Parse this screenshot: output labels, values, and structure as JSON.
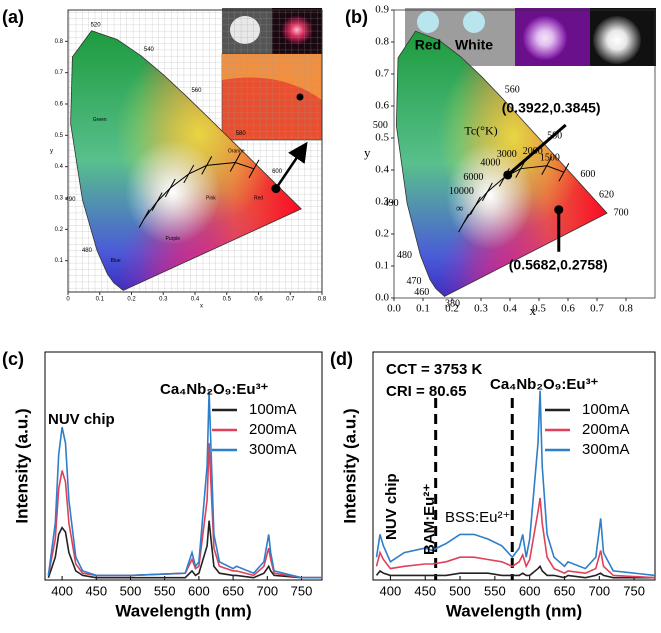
{
  "chart_data": [
    {
      "type": "scatter",
      "panel_label": "(a)",
      "xlim": [
        0,
        0.8
      ],
      "ylim": [
        0,
        0.9
      ],
      "xticks": [
        0,
        0.1,
        0.2,
        0.3,
        0.4,
        0.5,
        0.6,
        0.7,
        0.8
      ],
      "yticks": [
        0.1,
        0.2,
        0.3,
        0.4,
        0.5,
        0.6,
        0.7,
        0.8
      ],
      "xlabel": "x",
      "ylabel": "y",
      "grid": true,
      "color": "#000000",
      "x": [
        0.655
      ],
      "values": [
        0.33
      ],
      "locus_labels": [
        "480",
        "490",
        "520",
        "540",
        "560",
        "580",
        "600"
      ],
      "region_labels": [
        "Green",
        "Blue",
        "Purple",
        "Pink",
        "Red",
        "Orange"
      ]
    },
    {
      "type": "scatter",
      "panel_label": "(b)",
      "xlim": [
        0,
        0.9
      ],
      "ylim": [
        0,
        0.9
      ],
      "xticks": [
        {
          "value": 0,
          "label": "0.0"
        },
        0.1,
        0.2,
        0.3,
        0.4,
        0.5,
        0.6,
        0.7,
        0.8
      ],
      "yticks": [
        {
          "value": 0,
          "label": "0.0"
        },
        0.1,
        0.2,
        0.3,
        0.4,
        0.5,
        0.6,
        0.7,
        0.8,
        0.9
      ],
      "xlabel": "x",
      "ylabel": "y",
      "grid": false,
      "color": "#000000",
      "x": [
        0.3922,
        0.5682
      ],
      "values": [
        0.3845,
        0.2758
      ],
      "value_labels": [
        "(0.3922,0.3845)",
        "(0.5682,0.2758)"
      ],
      "photo_labels": [
        "Red",
        "White"
      ],
      "locus_labels": [
        "380",
        "460",
        "470",
        "480",
        "490",
        "500",
        "560",
        "580",
        "600",
        "620",
        "700"
      ],
      "cct_title": "Tc(°K)",
      "cct_labels": [
        "∞",
        "10000",
        "6000",
        "4000",
        "3000",
        "2000",
        "1500"
      ]
    },
    {
      "type": "line",
      "panel_label": "(c)",
      "xlabel": "Wavelength (nm)",
      "ylabel": "Intensity (a.u.)",
      "xlim": [
        375,
        780
      ],
      "ylim": [
        0,
        1
      ],
      "xticks": [
        400,
        450,
        500,
        550,
        600,
        650,
        700,
        750
      ],
      "x": [
        380,
        390,
        395,
        400,
        405,
        410,
        420,
        430,
        450,
        500,
        580,
        590,
        595,
        600,
        612,
        615,
        618,
        622,
        630,
        650,
        655,
        680,
        695,
        702,
        705,
        710,
        750,
        780
      ],
      "series": [
        {
          "name": "100mA",
          "color": "#222222",
          "values": [
            0.01,
            0.1,
            0.2,
            0.23,
            0.21,
            0.12,
            0.04,
            0.02,
            0.01,
            0.01,
            0.01,
            0.04,
            0.02,
            0.03,
            0.15,
            0.26,
            0.17,
            0.06,
            0.03,
            0.02,
            0.02,
            0.01,
            0.03,
            0.06,
            0.04,
            0.02,
            0.01,
            0.01
          ]
        },
        {
          "name": "200mA",
          "color": "#e0405a",
          "values": [
            0.02,
            0.18,
            0.4,
            0.48,
            0.43,
            0.25,
            0.07,
            0.03,
            0.02,
            0.02,
            0.03,
            0.09,
            0.05,
            0.06,
            0.35,
            0.6,
            0.4,
            0.14,
            0.06,
            0.04,
            0.04,
            0.02,
            0.06,
            0.14,
            0.09,
            0.03,
            0.01,
            0.01
          ]
        },
        {
          "name": "300mA",
          "color": "#2f7ec9",
          "values": [
            0.02,
            0.25,
            0.55,
            0.67,
            0.6,
            0.35,
            0.1,
            0.04,
            0.02,
            0.02,
            0.03,
            0.12,
            0.06,
            0.08,
            0.5,
            0.83,
            0.55,
            0.2,
            0.08,
            0.05,
            0.06,
            0.03,
            0.08,
            0.2,
            0.12,
            0.04,
            0.01,
            0.01
          ]
        }
      ],
      "annotations": [
        "NUV chip",
        "Ca₄Nb₂O₉:Eu³⁺"
      ]
    },
    {
      "type": "line",
      "panel_label": "(d)",
      "xlabel": "Wavelength (nm)",
      "ylabel": "Intensity (a.u.)",
      "xlim": [
        375,
        780
      ],
      "ylim": [
        0,
        1
      ],
      "xticks": [
        400,
        450,
        500,
        550,
        600,
        650,
        700,
        750
      ],
      "x": [
        380,
        385,
        390,
        400,
        420,
        450,
        460,
        480,
        500,
        520,
        540,
        560,
        575,
        585,
        590,
        595,
        600,
        612,
        615,
        618,
        625,
        635,
        650,
        655,
        680,
        695,
        702,
        706,
        720,
        780
      ],
      "series": [
        {
          "name": "100mA",
          "color": "#222222",
          "values": [
            0.02,
            0.04,
            0.03,
            0.02,
            0.02,
            0.02,
            0.02,
            0.02,
            0.03,
            0.03,
            0.03,
            0.02,
            0.02,
            0.02,
            0.03,
            0.02,
            0.02,
            0.05,
            0.06,
            0.04,
            0.02,
            0.02,
            0.01,
            0.02,
            0.01,
            0.02,
            0.03,
            0.02,
            0.01,
            0.01
          ]
        },
        {
          "name": "200mA",
          "color": "#e0405a",
          "values": [
            0.06,
            0.12,
            0.09,
            0.05,
            0.06,
            0.07,
            0.07,
            0.08,
            0.1,
            0.1,
            0.09,
            0.08,
            0.06,
            0.08,
            0.11,
            0.06,
            0.09,
            0.3,
            0.36,
            0.25,
            0.1,
            0.05,
            0.03,
            0.04,
            0.03,
            0.05,
            0.13,
            0.06,
            0.02,
            0.01
          ]
        },
        {
          "name": "300mA",
          "color": "#2f7ec9",
          "values": [
            0.1,
            0.2,
            0.15,
            0.08,
            0.12,
            0.14,
            0.13,
            0.16,
            0.2,
            0.2,
            0.18,
            0.15,
            0.1,
            0.14,
            0.2,
            0.1,
            0.18,
            0.6,
            0.83,
            0.5,
            0.2,
            0.1,
            0.06,
            0.08,
            0.05,
            0.1,
            0.27,
            0.12,
            0.04,
            0.02
          ]
        }
      ],
      "dashed_lines": [
        465,
        575
      ],
      "annotations": [
        "CCT = 3753 K",
        "CRI = 80.65",
        "NUV chip",
        "BAM:Eu²⁺",
        "BSS:Eu²⁺",
        "Ca₄Nb₂O₉:Eu³⁺"
      ]
    }
  ]
}
